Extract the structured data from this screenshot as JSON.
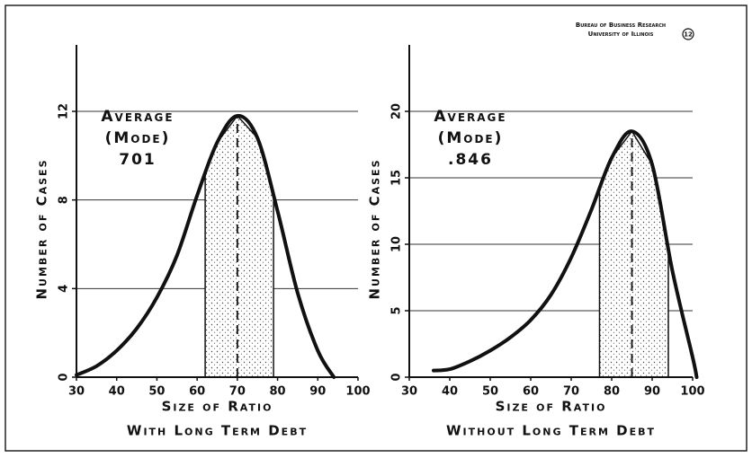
{
  "header": {
    "line1": "Bureau of Business Research",
    "line2": "University of Illinois",
    "page": "12"
  },
  "chart_data": [
    {
      "type": "line",
      "xlabel": "Size of Ratio",
      "ylabel": "Number of Cases",
      "caption": "With Long Term Debt",
      "annotation": [
        "Average",
        "(Mode)",
        "701"
      ],
      "x": [
        30,
        35,
        40,
        45,
        50,
        55,
        60,
        65,
        70,
        75,
        80,
        85,
        90,
        94
      ],
      "values": [
        0.1,
        0.5,
        1.2,
        2.2,
        3.6,
        5.5,
        8.2,
        10.6,
        11.8,
        10.8,
        7.5,
        3.8,
        1.2,
        0
      ],
      "shade": [
        62,
        79
      ],
      "mode": 70,
      "xlim": [
        30,
        100
      ],
      "ylim": [
        0,
        15
      ],
      "xticks": [
        30,
        40,
        50,
        60,
        70,
        80,
        90,
        100
      ],
      "yticks": [
        0,
        4,
        8,
        12
      ],
      "grid": true,
      "color": "#111"
    },
    {
      "type": "line",
      "xlabel": "Size of Ratio",
      "ylabel": "Number of Cases",
      "caption": "Without Long Term Debt",
      "annotation": [
        "Average",
        "(Mode)",
        ".846"
      ],
      "x": [
        36,
        40,
        45,
        50,
        55,
        60,
        65,
        70,
        75,
        80,
        85,
        90,
        95,
        100,
        101
      ],
      "values": [
        0.5,
        0.6,
        1.2,
        2,
        3,
        4.3,
        6.2,
        9,
        12.6,
        16.5,
        18.5,
        16,
        8,
        1.5,
        0
      ],
      "shade": [
        77,
        94
      ],
      "mode": 85,
      "xlim": [
        30,
        100
      ],
      "ylim": [
        0,
        25
      ],
      "xticks": [
        30,
        40,
        50,
        60,
        70,
        80,
        90,
        100
      ],
      "yticks": [
        0,
        5,
        10,
        15,
        20
      ],
      "grid": true,
      "color": "#111"
    }
  ]
}
